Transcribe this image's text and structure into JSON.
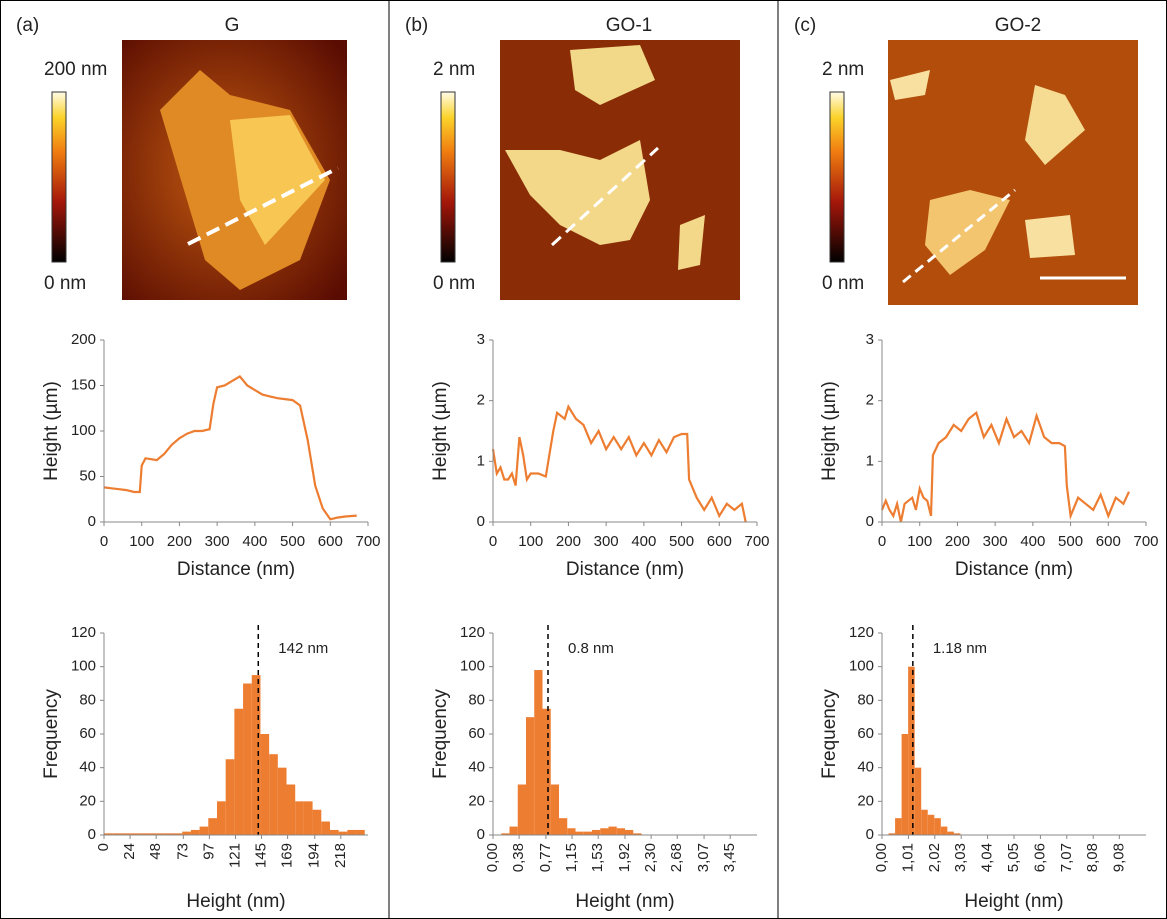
{
  "panels": [
    {
      "label": "(a)",
      "title": "G",
      "scale_max": "200 nm",
      "scale_min": "0 nm"
    },
    {
      "label": "(b)",
      "title": "GO-1",
      "scale_max": "2 nm",
      "scale_min": "0 nm"
    },
    {
      "label": "(c)",
      "title": "GO-2",
      "scale_max": "2 nm",
      "scale_min": "0 nm"
    }
  ],
  "chart_data": [
    {
      "type": "line",
      "x_label": "Distance (nm)",
      "y_label": "Height (µm)",
      "color": "#ed7d31",
      "x": [
        0,
        20,
        40,
        60,
        80,
        95,
        100,
        110,
        140,
        160,
        180,
        200,
        220,
        240,
        260,
        280,
        290,
        300,
        320,
        340,
        360,
        380,
        400,
        420,
        440,
        460,
        480,
        500,
        520,
        540,
        560,
        580,
        600,
        620,
        640,
        670
      ],
      "values": [
        38,
        37,
        36,
        35,
        33,
        33,
        62,
        70,
        68,
        75,
        85,
        92,
        97,
        100,
        100,
        102,
        130,
        148,
        150,
        155,
        160,
        150,
        145,
        140,
        138,
        136,
        135,
        134,
        128,
        90,
        40,
        15,
        3,
        5,
        6,
        7
      ],
      "xlim": [
        0,
        700
      ],
      "xticks": [
        0,
        100,
        200,
        300,
        400,
        500,
        600,
        700
      ],
      "ylim": [
        0,
        200
      ],
      "yticks": [
        0,
        50,
        100,
        150,
        200
      ]
    },
    {
      "type": "line",
      "x_label": "Distance (nm)",
      "y_label": "Height (µm)",
      "color": "#ed7d31",
      "x": [
        0,
        10,
        20,
        30,
        40,
        50,
        60,
        70,
        80,
        90,
        100,
        120,
        140,
        160,
        170,
        190,
        200,
        220,
        240,
        260,
        280,
        300,
        320,
        340,
        360,
        380,
        400,
        420,
        440,
        460,
        480,
        500,
        515,
        520,
        540,
        560,
        580,
        600,
        620,
        640,
        660,
        670
      ],
      "values": [
        1.2,
        0.8,
        0.9,
        0.7,
        0.7,
        0.8,
        0.6,
        1.4,
        1.1,
        0.7,
        0.8,
        0.8,
        0.75,
        1.5,
        1.8,
        1.7,
        1.9,
        1.7,
        1.6,
        1.3,
        1.5,
        1.2,
        1.4,
        1.2,
        1.4,
        1.1,
        1.3,
        1.1,
        1.35,
        1.15,
        1.4,
        1.45,
        1.45,
        0.7,
        0.4,
        0.2,
        0.4,
        0.1,
        0.3,
        0.2,
        0.3,
        0
      ],
      "xlim": [
        0,
        700
      ],
      "xticks": [
        0,
        100,
        200,
        300,
        400,
        500,
        600,
        700
      ],
      "ylim": [
        0,
        3
      ],
      "yticks": [
        0,
        1,
        2,
        3
      ]
    },
    {
      "type": "line",
      "x_label": "Distance (nm)",
      "y_label": "Height (µm)",
      "color": "#ed7d31",
      "x": [
        0,
        10,
        20,
        30,
        40,
        50,
        60,
        80,
        90,
        100,
        110,
        120,
        130,
        135,
        150,
        170,
        190,
        210,
        230,
        250,
        270,
        290,
        310,
        330,
        350,
        370,
        390,
        410,
        430,
        450,
        470,
        485,
        490,
        500,
        520,
        540,
        560,
        580,
        600,
        620,
        640,
        655
      ],
      "values": [
        0.2,
        0.35,
        0.2,
        0.1,
        0.3,
        0,
        0.3,
        0.4,
        0.2,
        0.55,
        0.4,
        0.35,
        0.1,
        1.1,
        1.3,
        1.4,
        1.6,
        1.5,
        1.7,
        1.8,
        1.4,
        1.6,
        1.3,
        1.7,
        1.4,
        1.5,
        1.3,
        1.75,
        1.4,
        1.3,
        1.3,
        1.25,
        0.6,
        0.1,
        0.4,
        0.3,
        0.2,
        0.45,
        0.1,
        0.4,
        0.3,
        0.5
      ],
      "xlim": [
        0,
        700
      ],
      "xticks": [
        0,
        100,
        200,
        300,
        400,
        500,
        600,
        700
      ],
      "ylim": [
        0,
        3
      ],
      "yticks": [
        0,
        1,
        2,
        3
      ]
    },
    {
      "type": "histogram",
      "x_label": "Height (nm)",
      "y_label": "Frequency",
      "color": "#ed7d31",
      "bins": [
        0,
        8,
        16,
        24,
        32,
        40,
        48,
        56,
        64,
        72,
        80,
        88,
        96,
        104,
        112,
        120,
        128,
        136,
        144,
        152,
        160,
        168,
        176,
        184,
        192,
        200,
        208,
        216,
        224,
        232,
        240
      ],
      "values": [
        1,
        1,
        1,
        1,
        1,
        1,
        1,
        1,
        1,
        2,
        3,
        5,
        10,
        20,
        45,
        75,
        90,
        95,
        60,
        48,
        40,
        30,
        20,
        20,
        15,
        8,
        3,
        2,
        3,
        3
      ],
      "xlim": [
        0,
        243
      ],
      "xticks": [
        0,
        24,
        48,
        73,
        97,
        121,
        145,
        169,
        194,
        218
      ],
      "ylim": [
        0,
        120
      ],
      "yticks": [
        0,
        20,
        40,
        60,
        80,
        100,
        120
      ],
      "annotation": {
        "x": 142,
        "label": "142 nm"
      }
    },
    {
      "type": "histogram",
      "x_label": "Height (nm)",
      "y_label": "Frequency",
      "color": "#ed7d31",
      "bins": [
        0,
        0.12,
        0.24,
        0.36,
        0.48,
        0.6,
        0.72,
        0.84,
        0.96,
        1.08,
        1.2,
        1.32,
        1.44,
        1.56,
        1.68,
        1.8,
        1.92,
        2.04,
        2.16,
        2.28,
        2.4,
        2.52,
        2.64,
        2.76,
        2.88,
        3.0,
        3.12,
        3.24,
        3.36,
        3.48,
        3.6,
        3.72,
        3.84
      ],
      "values": [
        0,
        1,
        5,
        30,
        70,
        98,
        75,
        30,
        10,
        4,
        2,
        2,
        3,
        4,
        5,
        4,
        3,
        1,
        0,
        0,
        0,
        0,
        0,
        0,
        0,
        0,
        0,
        0,
        0,
        0,
        0,
        0
      ],
      "xlim": [
        0,
        3.84
      ],
      "xticks": [
        {
          "value": 0,
          "label": "0,00"
        },
        {
          "value": 0.38,
          "label": "0,38"
        },
        {
          "value": 0.77,
          "label": "0,77"
        },
        {
          "value": 1.15,
          "label": "1,15"
        },
        {
          "value": 1.53,
          "label": "1,53"
        },
        {
          "value": 1.92,
          "label": "1,92"
        },
        {
          "value": 2.3,
          "label": "2,30"
        },
        {
          "value": 2.68,
          "label": "2,68"
        },
        {
          "value": 3.07,
          "label": "3,07"
        },
        {
          "value": 3.45,
          "label": "3,45"
        }
      ],
      "ylim": [
        0,
        120
      ],
      "yticks": [
        0,
        20,
        40,
        60,
        80,
        100,
        120
      ],
      "annotation": {
        "x": 0.8,
        "label": "0.8 nm"
      }
    },
    {
      "type": "histogram",
      "x_label": "Height (nm)",
      "y_label": "Frequency",
      "color": "#ed7d31",
      "bins": [
        0,
        0.25,
        0.5,
        0.75,
        1,
        1.25,
        1.5,
        1.75,
        2,
        2.25,
        2.5,
        2.75,
        3,
        3.25,
        3.5,
        3.75,
        4,
        4.25,
        4.5,
        4.75,
        5,
        5.25,
        5.5,
        5.75,
        6,
        6.25,
        6.5,
        6.75,
        7,
        7.25,
        7.5,
        7.75,
        8,
        8.25,
        8.5,
        8.75,
        9,
        9.25,
        9.5,
        9.75,
        10
      ],
      "values": [
        0,
        1,
        10,
        60,
        100,
        40,
        15,
        12,
        10,
        5,
        2,
        1,
        0,
        0,
        0,
        0,
        0,
        0,
        0,
        0,
        0,
        0,
        0,
        0,
        0,
        0,
        0,
        0,
        0,
        0,
        0,
        0,
        0,
        0,
        0,
        0,
        0,
        0,
        0,
        0
      ],
      "xlim": [
        0,
        10.1
      ],
      "xticks": [
        {
          "value": 0,
          "label": "0,00"
        },
        {
          "value": 1.01,
          "label": "1,01"
        },
        {
          "value": 2.02,
          "label": "2,02"
        },
        {
          "value": 3.03,
          "label": "3,03"
        },
        {
          "value": 4.04,
          "label": "4,04"
        },
        {
          "value": 5.05,
          "label": "5,05"
        },
        {
          "value": 6.06,
          "label": "6,06"
        },
        {
          "value": 7.07,
          "label": "7,07"
        },
        {
          "value": 8.08,
          "label": "8,08"
        },
        {
          "value": 9.08,
          "label": "9,08"
        }
      ],
      "ylim": [
        0,
        120
      ],
      "yticks": [
        0,
        20,
        40,
        60,
        80,
        100,
        120
      ],
      "annotation": {
        "x": 1.18,
        "label": "1.18 nm"
      }
    }
  ]
}
